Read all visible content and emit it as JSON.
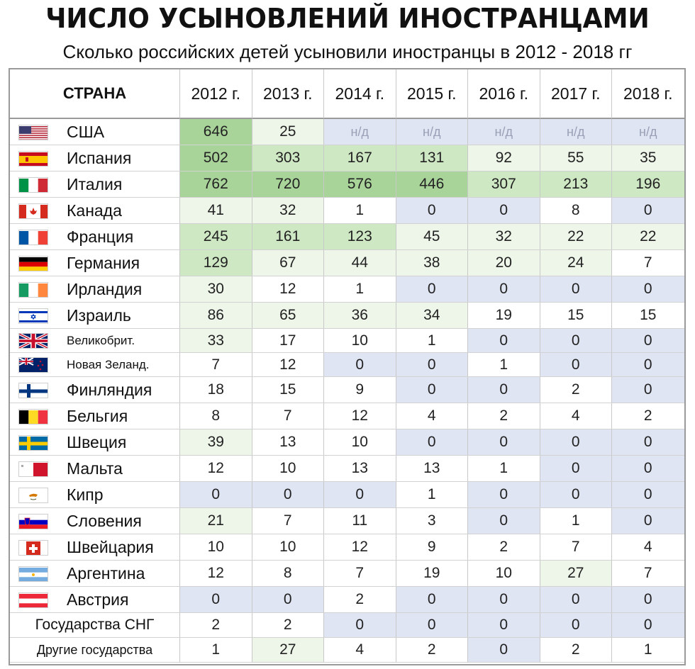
{
  "title": "ЧИСЛО УСЫНОВЛЕНИЙ ИНОСТРАНЦАМИ",
  "subtitle": "Сколько российских детей усыновили иностранцы в 2012 - 2018 гг",
  "chart_data": {
    "type": "table",
    "column_header": "СТРАНА",
    "years": [
      "2012 г.",
      "2013 г.",
      "2014 г.",
      "2015 г.",
      "2016 г.",
      "2017 г.",
      "2018 г."
    ],
    "na_label": "н/д",
    "rows": [
      {
        "country": "США",
        "flag": "usa-flag-icon",
        "values": [
          646,
          25,
          null,
          null,
          null,
          null,
          null
        ]
      },
      {
        "country": "Испания",
        "flag": "spain-flag-icon",
        "values": [
          502,
          303,
          167,
          131,
          92,
          55,
          35
        ]
      },
      {
        "country": "Италия",
        "flag": "italy-flag-icon",
        "values": [
          762,
          720,
          576,
          446,
          307,
          213,
          196
        ]
      },
      {
        "country": "Канада",
        "flag": "canada-flag-icon",
        "values": [
          41,
          32,
          1,
          0,
          0,
          8,
          0
        ]
      },
      {
        "country": "Франция",
        "flag": "france-flag-icon",
        "values": [
          245,
          161,
          123,
          45,
          32,
          22,
          22
        ]
      },
      {
        "country": "Германия",
        "flag": "germany-flag-icon",
        "values": [
          129,
          67,
          44,
          38,
          20,
          24,
          7
        ]
      },
      {
        "country": "Ирландия",
        "flag": "ireland-flag-icon",
        "values": [
          30,
          12,
          1,
          0,
          0,
          0,
          0
        ]
      },
      {
        "country": "Израиль",
        "flag": "israel-flag-icon",
        "values": [
          86,
          65,
          36,
          34,
          19,
          15,
          15
        ]
      },
      {
        "country": "Великобрит.",
        "flag": "uk-flag-icon",
        "values": [
          33,
          17,
          10,
          1,
          0,
          0,
          0
        ]
      },
      {
        "country": "Новая Зеланд.",
        "flag": "new-zealand-flag-icon",
        "values": [
          7,
          12,
          0,
          0,
          1,
          0,
          0
        ]
      },
      {
        "country": "Финляндия",
        "flag": "finland-flag-icon",
        "values": [
          18,
          15,
          9,
          0,
          0,
          2,
          0
        ]
      },
      {
        "country": "Бельгия",
        "flag": "belgium-flag-icon",
        "values": [
          8,
          7,
          12,
          4,
          2,
          4,
          2
        ]
      },
      {
        "country": "Швеция",
        "flag": "sweden-flag-icon",
        "values": [
          39,
          13,
          10,
          0,
          0,
          0,
          0
        ]
      },
      {
        "country": "Мальта",
        "flag": "malta-flag-icon",
        "values": [
          12,
          10,
          13,
          13,
          1,
          0,
          0
        ]
      },
      {
        "country": "Кипр",
        "flag": "cyprus-flag-icon",
        "values": [
          0,
          0,
          0,
          1,
          0,
          0,
          0
        ]
      },
      {
        "country": "Словения",
        "flag": "slovenia-flag-icon",
        "values": [
          21,
          7,
          11,
          3,
          0,
          1,
          0
        ]
      },
      {
        "country": "Швейцария",
        "flag": "switzerland-flag-icon",
        "values": [
          10,
          10,
          12,
          9,
          2,
          7,
          4
        ]
      },
      {
        "country": "Аргентина",
        "flag": "argentina-flag-icon",
        "values": [
          12,
          8,
          7,
          19,
          10,
          27,
          7
        ]
      },
      {
        "country": "Австрия",
        "flag": "austria-flag-icon",
        "values": [
          0,
          0,
          2,
          0,
          0,
          0,
          0
        ]
      },
      {
        "country": "Государства СНГ",
        "flag": null,
        "values": [
          2,
          2,
          0,
          0,
          0,
          0,
          0
        ]
      },
      {
        "country": "Другие государства",
        "flag": null,
        "values": [
          1,
          27,
          4,
          2,
          0,
          2,
          1
        ]
      }
    ],
    "colors": {
      "zero_cell": "#dfe5f3",
      "na_cell": "#dfe5f3",
      "high_cell": "#a8d49a",
      "mid_cell": "#cfe8c4",
      "low_cell": "#eef6ea",
      "text": "#222222"
    }
  }
}
